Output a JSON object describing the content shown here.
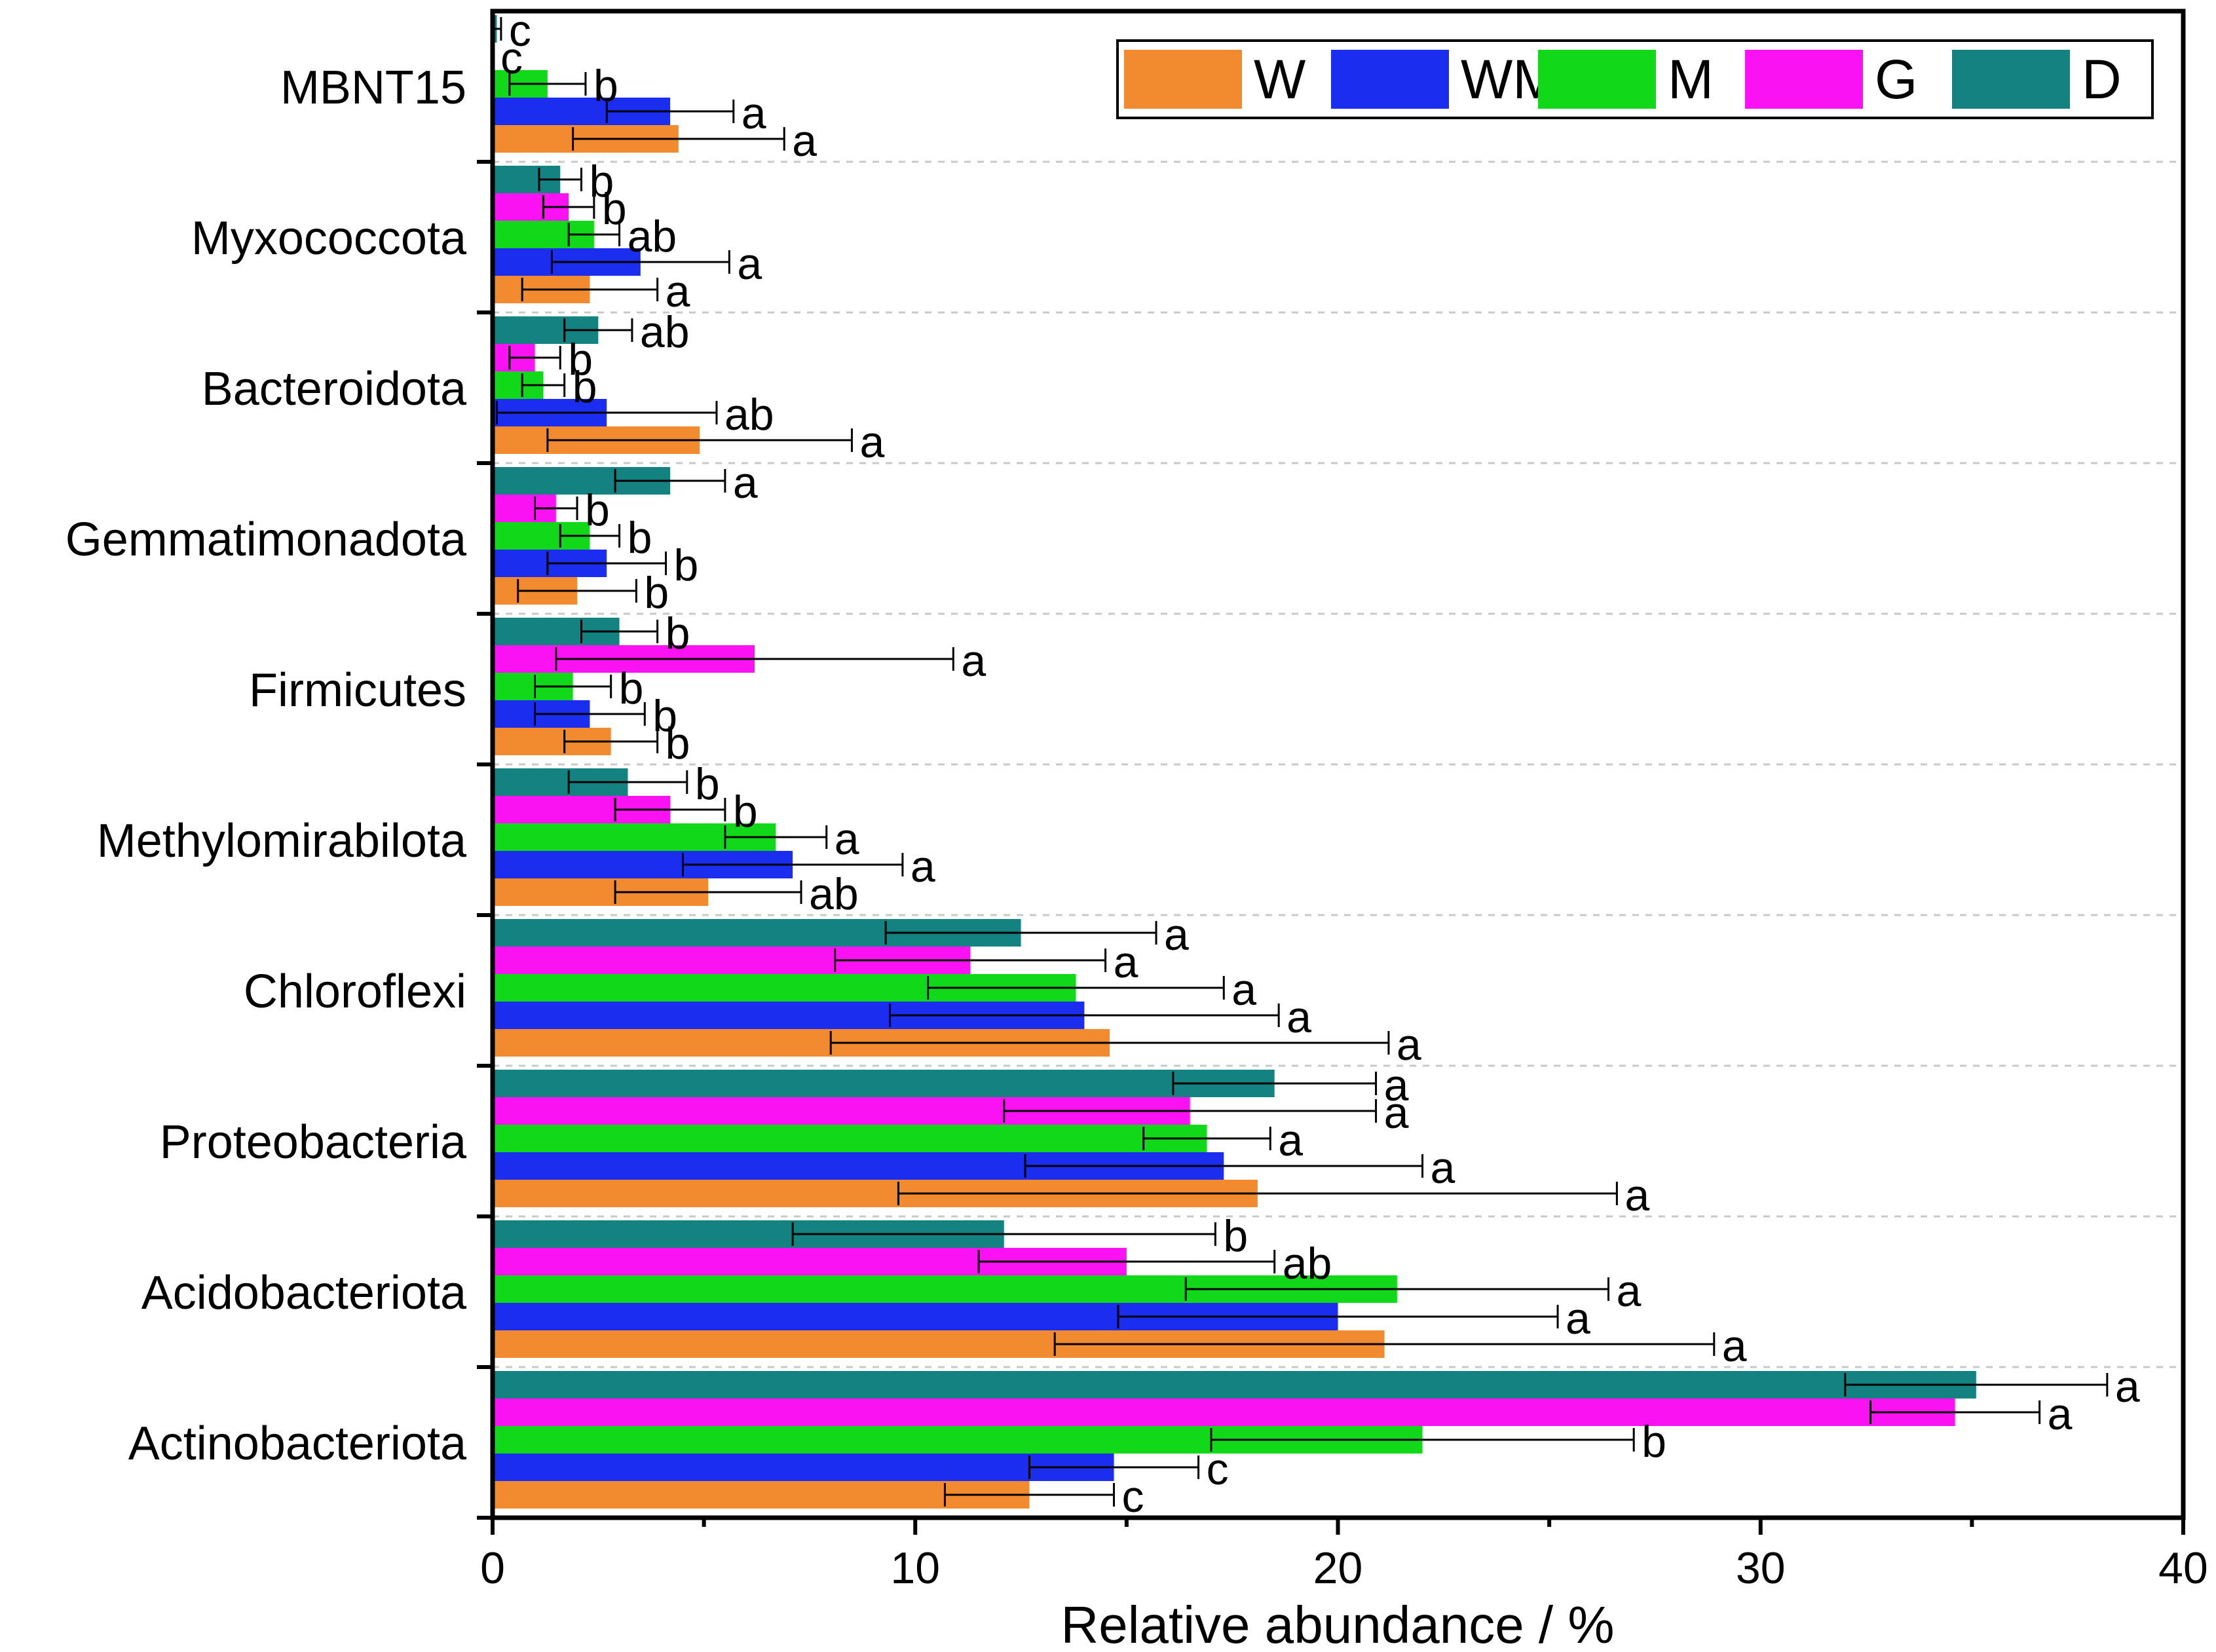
{
  "chart_data": {
    "type": "bar",
    "orientation": "horizontal",
    "xlabel": "Relative abundance / %",
    "xlim": [
      0,
      40
    ],
    "xticks": [
      0,
      10,
      20,
      30,
      40
    ],
    "legend_position": "top-right",
    "categories": [
      "MBNT15",
      "Myxococcota",
      "Bacteroidota",
      "Gemmatimonadota",
      "Firmicutes",
      "Methylomirabilota",
      "Chloroflexi",
      "Proteobacteria",
      "Acidobacteriota",
      "Actinobacteriota"
    ],
    "series": [
      {
        "name": "W",
        "color": "#F28A30",
        "values": [
          4.4,
          2.3,
          4.9,
          2.0,
          2.8,
          5.1,
          14.6,
          18.1,
          21.1,
          12.7
        ],
        "errors": [
          2.5,
          1.6,
          3.6,
          1.4,
          1.1,
          2.2,
          6.6,
          8.5,
          7.8,
          2.0
        ],
        "letters": [
          "a",
          "a",
          "a",
          "b",
          "b",
          "ab",
          "a",
          "a",
          "a",
          "c"
        ]
      },
      {
        "name": "WM",
        "color": "#1B2EF0",
        "values": [
          4.2,
          3.5,
          2.7,
          2.7,
          2.3,
          7.1,
          14.0,
          17.3,
          20.0,
          14.7
        ],
        "errors": [
          1.5,
          2.1,
          2.6,
          1.4,
          1.3,
          2.6,
          4.6,
          4.7,
          5.2,
          2.0
        ],
        "letters": [
          "a",
          "a",
          "ab",
          "b",
          "b",
          "a",
          "a",
          "a",
          "a",
          "c"
        ]
      },
      {
        "name": "M",
        "color": "#12D81A",
        "values": [
          1.3,
          2.4,
          1.2,
          2.3,
          1.9,
          6.7,
          13.8,
          16.9,
          21.4,
          22.0
        ],
        "errors": [
          0.9,
          0.6,
          0.5,
          0.7,
          0.9,
          1.2,
          3.5,
          1.5,
          5.0,
          5.0
        ],
        "letters": [
          "b",
          "ab",
          "b",
          "b",
          "b",
          "a",
          "a",
          "a",
          "a",
          "b"
        ]
      },
      {
        "name": "G",
        "color": "#FA12F2",
        "values": [
          null,
          1.8,
          1.0,
          1.5,
          6.2,
          4.2,
          11.3,
          16.5,
          15.0,
          34.6
        ],
        "errors": [
          null,
          0.6,
          0.6,
          0.5,
          4.7,
          1.3,
          3.2,
          4.4,
          3.5,
          2.0
        ],
        "letters": [
          "c",
          "b",
          "b",
          "b",
          "a",
          "b",
          "a",
          "a",
          "ab",
          "a"
        ]
      },
      {
        "name": "D",
        "color": "#138281",
        "values": [
          0.1,
          1.6,
          2.5,
          4.2,
          3.0,
          3.2,
          12.5,
          18.5,
          12.1,
          35.1
        ],
        "errors": [
          0.1,
          0.5,
          0.8,
          1.3,
          0.9,
          1.4,
          3.2,
          2.4,
          5.0,
          3.1
        ],
        "letters": [
          "c",
          "b",
          "ab",
          "a",
          "b",
          "b",
          "a",
          "a",
          "b",
          "a"
        ]
      }
    ]
  }
}
